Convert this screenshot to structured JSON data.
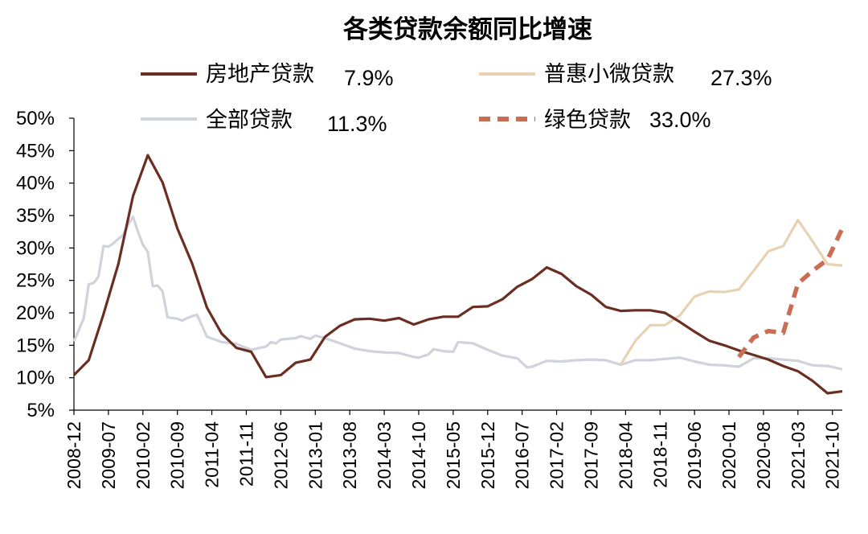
{
  "chart_data": {
    "type": "line",
    "title": "各类贷款余额同比增速",
    "xlabel": "",
    "ylabel": "",
    "ylim": [
      0.05,
      0.5
    ],
    "grid": false,
    "legend_position": "top",
    "x_ticks": [
      "2008-12",
      "2009-07",
      "2010-02",
      "2010-09",
      "2011-04",
      "2011-11",
      "2012-06",
      "2013-01",
      "2013-08",
      "2014-03",
      "2014-10",
      "2015-05",
      "2015-12",
      "2016-07",
      "2017-02",
      "2017-09",
      "2018-04",
      "2018-11",
      "2019-06",
      "2020-01",
      "2020-08",
      "2021-03",
      "2021-10"
    ],
    "y_ticks": [
      "5%",
      "10%",
      "15%",
      "20%",
      "25%",
      "30%",
      "35%",
      "40%",
      "45%",
      "50%"
    ],
    "series": [
      {
        "name": "房地产贷款",
        "legend_value": "7.9%",
        "color": "#6b2e22",
        "dash": "solid",
        "points": [
          [
            "2008-12",
            0.104
          ],
          [
            "2009-03",
            0.127
          ],
          [
            "2009-06",
            0.198
          ],
          [
            "2009-09",
            0.275
          ],
          [
            "2009-12",
            0.38
          ],
          [
            "2010-03",
            0.443
          ],
          [
            "2010-06",
            0.401
          ],
          [
            "2010-09",
            0.33
          ],
          [
            "2010-12",
            0.276
          ],
          [
            "2011-03",
            0.208
          ],
          [
            "2011-06",
            0.168
          ],
          [
            "2011-09",
            0.146
          ],
          [
            "2011-12",
            0.14
          ],
          [
            "2012-03",
            0.101
          ],
          [
            "2012-06",
            0.104
          ],
          [
            "2012-09",
            0.123
          ],
          [
            "2012-12",
            0.128
          ],
          [
            "2013-03",
            0.163
          ],
          [
            "2013-06",
            0.18
          ],
          [
            "2013-09",
            0.19
          ],
          [
            "2013-12",
            0.191
          ],
          [
            "2014-03",
            0.188
          ],
          [
            "2014-06",
            0.192
          ],
          [
            "2014-09",
            0.182
          ],
          [
            "2014-12",
            0.19
          ],
          [
            "2015-03",
            0.194
          ],
          [
            "2015-06",
            0.194
          ],
          [
            "2015-09",
            0.209
          ],
          [
            "2015-12",
            0.21
          ],
          [
            "2016-03",
            0.221
          ],
          [
            "2016-06",
            0.24
          ],
          [
            "2016-09",
            0.252
          ],
          [
            "2016-12",
            0.27
          ],
          [
            "2017-03",
            0.26
          ],
          [
            "2017-06",
            0.241
          ],
          [
            "2017-09",
            0.228
          ],
          [
            "2017-12",
            0.209
          ],
          [
            "2018-03",
            0.203
          ],
          [
            "2018-06",
            0.204
          ],
          [
            "2018-09",
            0.204
          ],
          [
            "2018-12",
            0.2
          ],
          [
            "2019-03",
            0.186
          ],
          [
            "2019-06",
            0.171
          ],
          [
            "2019-09",
            0.157
          ],
          [
            "2019-12",
            0.15
          ],
          [
            "2020-03",
            0.142
          ],
          [
            "2020-06",
            0.135
          ],
          [
            "2020-09",
            0.128
          ],
          [
            "2020-12",
            0.118
          ],
          [
            "2021-03",
            0.11
          ],
          [
            "2021-06",
            0.095
          ],
          [
            "2021-09",
            0.076
          ],
          [
            "2021-12",
            0.079
          ]
        ]
      },
      {
        "name": "普惠小微贷款",
        "legend_value": "27.3%",
        "color": "#e8d2b3",
        "dash": "solid",
        "points": [
          [
            "2018-03",
            0.12
          ],
          [
            "2018-06",
            0.157
          ],
          [
            "2018-09",
            0.181
          ],
          [
            "2018-12",
            0.181
          ],
          [
            "2019-03",
            0.196
          ],
          [
            "2019-06",
            0.225
          ],
          [
            "2019-09",
            0.233
          ],
          [
            "2019-12",
            0.232
          ],
          [
            "2020-03",
            0.236
          ],
          [
            "2020-06",
            0.265
          ],
          [
            "2020-09",
            0.295
          ],
          [
            "2020-12",
            0.303
          ],
          [
            "2021-03",
            0.343
          ],
          [
            "2021-06",
            0.31
          ],
          [
            "2021-09",
            0.275
          ],
          [
            "2021-12",
            0.273
          ]
        ]
      },
      {
        "name": "全部贷款",
        "legend_value": "11.3%",
        "color": "#d0d2dc",
        "dash": "solid",
        "points": [
          [
            "2008-12",
            0.156
          ],
          [
            "2009-02",
            0.192
          ],
          [
            "2009-03",
            0.244
          ],
          [
            "2009-04",
            0.246
          ],
          [
            "2009-05",
            0.256
          ],
          [
            "2009-06",
            0.303
          ],
          [
            "2009-07",
            0.302
          ],
          [
            "2009-08",
            0.307
          ],
          [
            "2009-09",
            0.314
          ],
          [
            "2009-10",
            0.32
          ],
          [
            "2009-11",
            0.336
          ],
          [
            "2009-12",
            0.348
          ],
          [
            "2010-01",
            0.325
          ],
          [
            "2010-02",
            0.305
          ],
          [
            "2010-03",
            0.294
          ],
          [
            "2010-04",
            0.241
          ],
          [
            "2010-05",
            0.242
          ],
          [
            "2010-06",
            0.233
          ],
          [
            "2010-07",
            0.193
          ],
          [
            "2010-09",
            0.191
          ],
          [
            "2010-10",
            0.188
          ],
          [
            "2010-11",
            0.192
          ],
          [
            "2010-12",
            0.195
          ],
          [
            "2011-01",
            0.197
          ],
          [
            "2011-03",
            0.163
          ],
          [
            "2011-06",
            0.155
          ],
          [
            "2011-09",
            0.152
          ],
          [
            "2011-12",
            0.143
          ],
          [
            "2012-03",
            0.148
          ],
          [
            "2012-04",
            0.155
          ],
          [
            "2012-05",
            0.153
          ],
          [
            "2012-06",
            0.159
          ],
          [
            "2012-09",
            0.161
          ],
          [
            "2012-10",
            0.164
          ],
          [
            "2012-12",
            0.16
          ],
          [
            "2013-01",
            0.165
          ],
          [
            "2013-03",
            0.161
          ],
          [
            "2013-06",
            0.153
          ],
          [
            "2013-09",
            0.145
          ],
          [
            "2013-12",
            0.141
          ],
          [
            "2014-03",
            0.139
          ],
          [
            "2014-06",
            0.138
          ],
          [
            "2014-09",
            0.132
          ],
          [
            "2014-10",
            0.131
          ],
          [
            "2014-12",
            0.136
          ],
          [
            "2015-01",
            0.144
          ],
          [
            "2015-03",
            0.141
          ],
          [
            "2015-05",
            0.14
          ],
          [
            "2015-06",
            0.155
          ],
          [
            "2015-09",
            0.153
          ],
          [
            "2015-12",
            0.143
          ],
          [
            "2016-03",
            0.134
          ],
          [
            "2016-06",
            0.13
          ],
          [
            "2016-08",
            0.116
          ],
          [
            "2016-09",
            0.117
          ],
          [
            "2016-12",
            0.126
          ],
          [
            "2017-03",
            0.125
          ],
          [
            "2017-06",
            0.127
          ],
          [
            "2017-09",
            0.128
          ],
          [
            "2017-12",
            0.127
          ],
          [
            "2018-03",
            0.12
          ],
          [
            "2018-06",
            0.127
          ],
          [
            "2018-09",
            0.127
          ],
          [
            "2018-12",
            0.129
          ],
          [
            "2019-03",
            0.131
          ],
          [
            "2019-06",
            0.125
          ],
          [
            "2019-09",
            0.12
          ],
          [
            "2019-12",
            0.119
          ],
          [
            "2020-03",
            0.117
          ],
          [
            "2020-06",
            0.13
          ],
          [
            "2020-09",
            0.13
          ],
          [
            "2020-12",
            0.128
          ],
          [
            "2021-03",
            0.126
          ],
          [
            "2021-06",
            0.119
          ],
          [
            "2021-09",
            0.118
          ],
          [
            "2021-12",
            0.113
          ]
        ]
      },
      {
        "name": "绿色贷款",
        "legend_value": "33.0%",
        "color": "#c96e55",
        "dash": "dashed",
        "points": [
          [
            "2020-03",
            0.132
          ],
          [
            "2020-06",
            0.162
          ],
          [
            "2020-09",
            0.172
          ],
          [
            "2020-12",
            0.169
          ],
          [
            "2021-03",
            0.245
          ],
          [
            "2021-06",
            0.265
          ],
          [
            "2021-09",
            0.282
          ],
          [
            "2021-12",
            0.33
          ]
        ]
      }
    ]
  }
}
